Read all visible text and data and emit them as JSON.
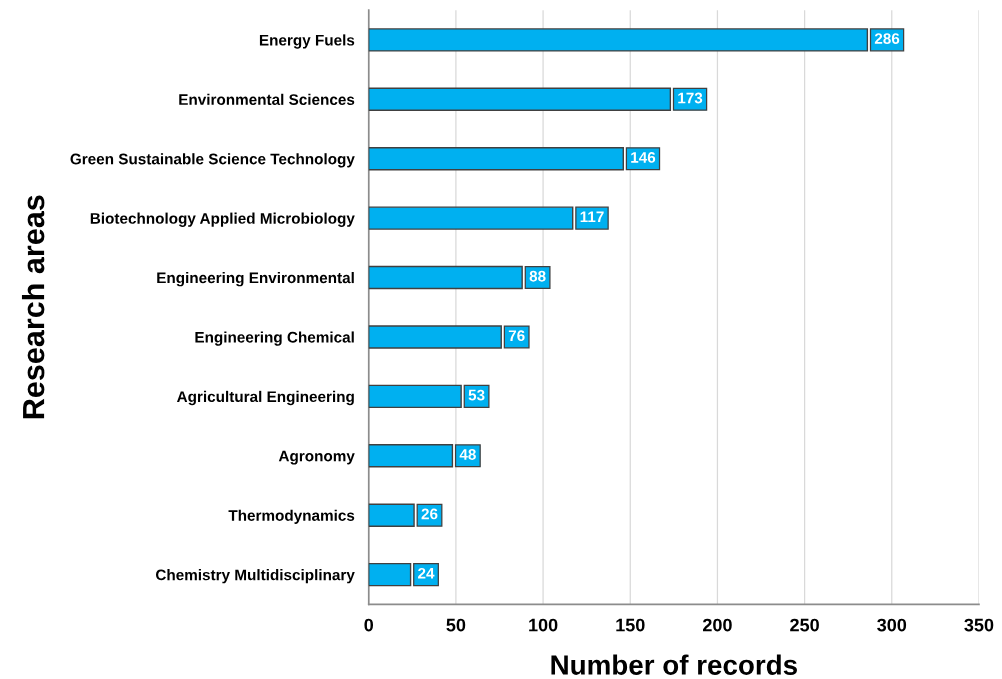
{
  "chart_data": {
    "type": "bar",
    "orientation": "horizontal",
    "categories": [
      "Energy Fuels",
      "Environmental Sciences",
      "Green Sustainable Science Technology",
      "Biotechnology Applied Microbiology",
      "Engineering Environmental",
      "Engineering Chemical",
      "Agricultural Engineering",
      "Agronomy",
      "Thermodynamics",
      "Chemistry Multidisciplinary"
    ],
    "values": [
      286,
      173,
      146,
      117,
      88,
      76,
      53,
      48,
      26,
      24
    ],
    "color": "#00b0f0",
    "xlabel": "Number of records",
    "ylabel": "Research areas",
    "xlim": [
      0,
      350
    ],
    "xticks": [
      0,
      50,
      100,
      150,
      200,
      250,
      300,
      350
    ],
    "grid": "x",
    "data_labels": true,
    "legend": false
  }
}
